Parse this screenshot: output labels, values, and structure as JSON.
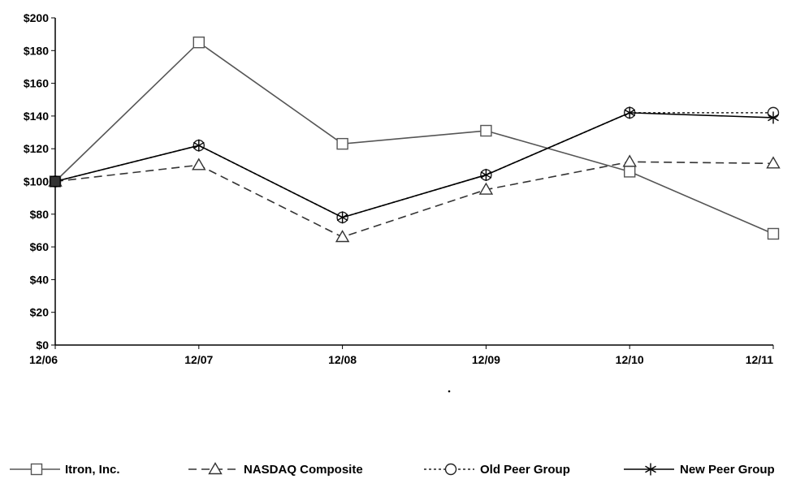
{
  "chart_data": {
    "type": "line",
    "categories": [
      "12/06",
      "12/07",
      "12/08",
      "12/09",
      "12/10",
      "12/11"
    ],
    "ylim": [
      0,
      200
    ],
    "yticks": [
      0,
      20,
      40,
      60,
      80,
      100,
      120,
      140,
      160,
      180,
      200
    ],
    "ytick_labels": [
      "$0",
      "$20",
      "$40",
      "$60",
      "$80",
      "$100",
      "$120",
      "$140",
      "$160",
      "$180",
      "$200"
    ],
    "grid": false,
    "legend_placement": "bottom",
    "series": [
      {
        "name": "Itron, Inc.",
        "marker": "square",
        "dash": "solid",
        "color": "#555555",
        "values": [
          100,
          185,
          123,
          131,
          106,
          68
        ]
      },
      {
        "name": "NASDAQ Composite",
        "marker": "triangle",
        "dash": "dashed",
        "color": "#333333",
        "values": [
          100,
          110,
          66,
          95,
          112,
          111
        ]
      },
      {
        "name": "Old Peer Group",
        "marker": "circle",
        "dash": "dotted",
        "color": "#222222",
        "values": [
          100,
          122,
          78,
          104,
          142,
          142
        ]
      },
      {
        "name": "New Peer Group",
        "marker": "star",
        "dash": "solid",
        "color": "#000000",
        "values": [
          100,
          122,
          78,
          104,
          142,
          139
        ]
      }
    ]
  }
}
